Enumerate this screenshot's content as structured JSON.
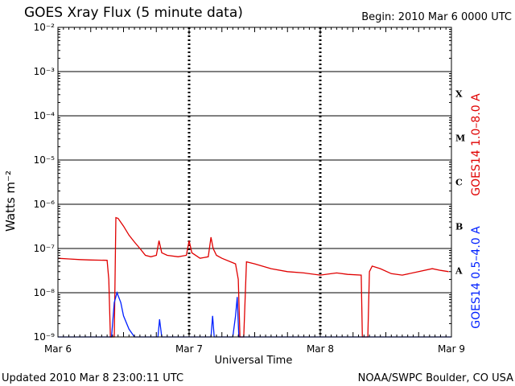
{
  "header": {
    "title": "GOES Xray Flux (5 minute data)",
    "begin": "Begin:  2010 Mar 6 0000 UTC"
  },
  "footer": {
    "updated": "Updated 2010 Mar  8 23:00:11 UTC",
    "credit": "NOAA/SWPC Boulder, CO USA"
  },
  "chart_data": {
    "type": "line",
    "xlabel": "Universal Time",
    "ylabel": "Watts m⁻²",
    "xlim": [
      0,
      72
    ],
    "x_unit": "hours since 2010 Mar 6 0000 UTC",
    "x_ticks": [
      {
        "value": 0,
        "label": "Mar 6"
      },
      {
        "value": 24,
        "label": "Mar 7"
      },
      {
        "value": 48,
        "label": "Mar 8"
      },
      {
        "value": 72,
        "label": "Mar 9"
      }
    ],
    "yscale": "log",
    "ylim": [
      1e-09,
      0.01
    ],
    "y_ticks": [
      {
        "exp": -2,
        "label": "10⁻²"
      },
      {
        "exp": -3,
        "label": "10⁻³"
      },
      {
        "exp": -4,
        "label": "10⁻⁴"
      },
      {
        "exp": -5,
        "label": "10⁻⁵"
      },
      {
        "exp": -6,
        "label": "10⁻⁶"
      },
      {
        "exp": -7,
        "label": "10⁻⁷"
      },
      {
        "exp": -8,
        "label": "10⁻⁸"
      },
      {
        "exp": -9,
        "label": "10⁻⁹"
      }
    ],
    "flare_classes": [
      {
        "label": "X",
        "level": 0.0001
      },
      {
        "label": "M",
        "level": 1e-05
      },
      {
        "label": "C",
        "level": 1e-06
      },
      {
        "label": "B",
        "level": 1e-07
      },
      {
        "label": "A",
        "level": 1e-08
      }
    ],
    "grid": true,
    "series": [
      {
        "name": "GOES14 1.0–8.0 A",
        "color": "#e00000",
        "points": [
          [
            0,
            6e-08
          ],
          [
            2,
            5.8e-08
          ],
          [
            4,
            5.6e-08
          ],
          [
            6,
            5.5e-08
          ],
          [
            9,
            5.4e-08
          ],
          [
            9.3,
            2e-08
          ],
          [
            9.6,
            1e-09
          ],
          [
            10.3,
            1e-09
          ],
          [
            10.6,
            5e-07
          ],
          [
            11,
            4.8e-07
          ],
          [
            12,
            3.2e-07
          ],
          [
            13,
            2e-07
          ],
          [
            14,
            1.4e-07
          ],
          [
            15,
            1e-07
          ],
          [
            16,
            7e-08
          ],
          [
            17,
            6.5e-08
          ],
          [
            18,
            7e-08
          ],
          [
            18.5,
            1.5e-07
          ],
          [
            19,
            8e-08
          ],
          [
            20,
            7e-08
          ],
          [
            22,
            6.5e-08
          ],
          [
            23.5,
            7e-08
          ],
          [
            24,
            1.5e-07
          ],
          [
            24.5,
            8e-08
          ],
          [
            26,
            6e-08
          ],
          [
            27.5,
            6.5e-08
          ],
          [
            28,
            1.8e-07
          ],
          [
            28.4,
            1e-07
          ],
          [
            29,
            7e-08
          ],
          [
            30,
            6e-08
          ],
          [
            32.5,
            4.5e-08
          ],
          [
            33,
            2e-08
          ],
          [
            33.3,
            1e-09
          ],
          [
            34,
            1e-09
          ],
          [
            34.5,
            5e-08
          ],
          [
            36,
            4.5e-08
          ],
          [
            39,
            3.5e-08
          ],
          [
            42,
            3e-08
          ],
          [
            45,
            2.8e-08
          ],
          [
            48,
            2.5e-08
          ],
          [
            51,
            2.8e-08
          ],
          [
            53,
            2.6e-08
          ],
          [
            55.5,
            2.5e-08
          ],
          [
            55.7,
            1e-09
          ],
          [
            56.7,
            1e-09
          ],
          [
            57,
            3e-08
          ],
          [
            57.5,
            4e-08
          ],
          [
            59,
            3.5e-08
          ],
          [
            61,
            2.7e-08
          ],
          [
            63,
            2.5e-08
          ],
          [
            66,
            3e-08
          ],
          [
            68.5,
            3.5e-08
          ],
          [
            70,
            3.2e-08
          ],
          [
            71.5,
            3e-08
          ]
        ]
      },
      {
        "name": "GOES14 0.5–4.0 A",
        "color": "#0020ff",
        "points": [
          [
            0,
            1e-09
          ],
          [
            9.8,
            1e-09
          ],
          [
            10.3,
            6e-09
          ],
          [
            10.8,
            1e-08
          ],
          [
            11.5,
            6e-09
          ],
          [
            12,
            3e-09
          ],
          [
            13,
            1.5e-09
          ],
          [
            14,
            1e-09
          ],
          [
            18.3,
            1e-09
          ],
          [
            18.6,
            2.5e-09
          ],
          [
            19,
            1e-09
          ],
          [
            28,
            1e-09
          ],
          [
            28.3,
            3e-09
          ],
          [
            28.6,
            1e-09
          ],
          [
            32,
            1e-09
          ],
          [
            32.5,
            3e-09
          ],
          [
            32.8,
            8e-09
          ],
          [
            33.1,
            1e-09
          ],
          [
            72,
            1e-09
          ]
        ]
      }
    ]
  }
}
